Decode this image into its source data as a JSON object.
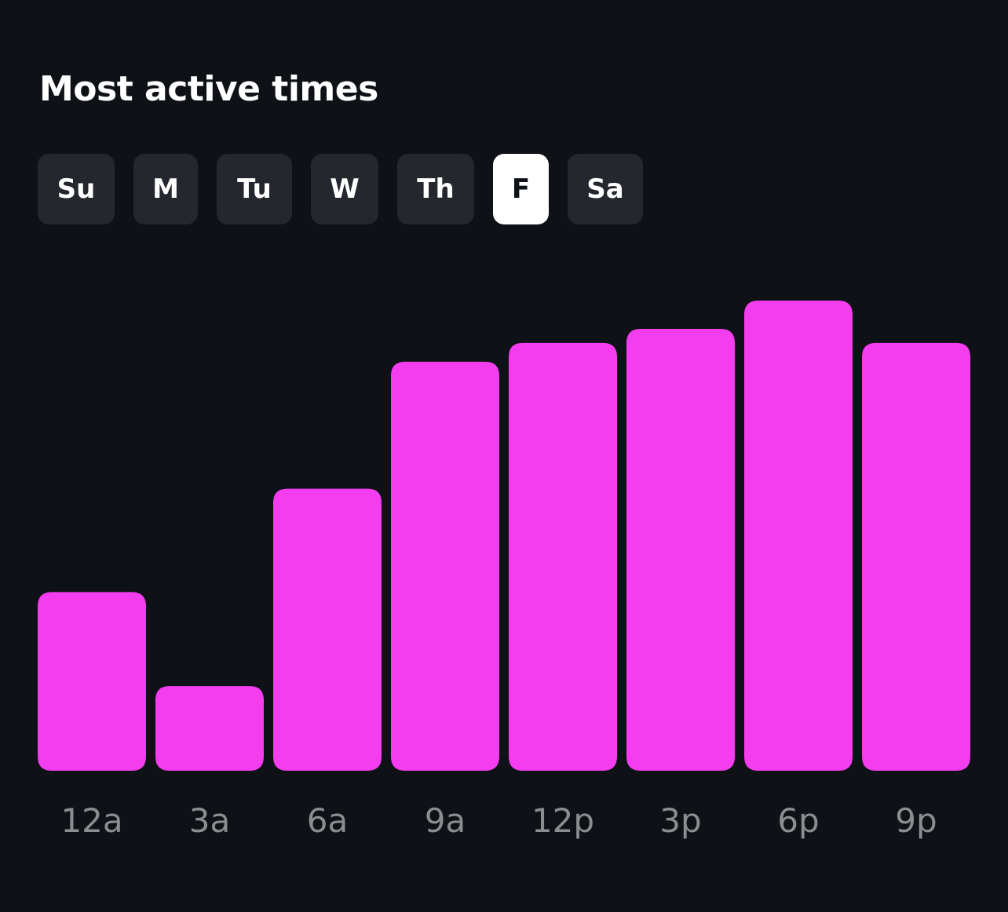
{
  "header": {
    "title": "Most active times"
  },
  "days": [
    {
      "label": "Su",
      "selected": false
    },
    {
      "label": "M",
      "selected": false
    },
    {
      "label": "Tu",
      "selected": false
    },
    {
      "label": "W",
      "selected": false
    },
    {
      "label": "Th",
      "selected": false
    },
    {
      "label": "F",
      "selected": true
    },
    {
      "label": "Sa",
      "selected": false
    }
  ],
  "colors": {
    "background": "#0e1116",
    "bar": "#f53df0",
    "tab": "#24272d",
    "tab_active": "#ffffff",
    "tick_label": "#8b8d91"
  },
  "chart_data": {
    "type": "bar",
    "title": "Most active times",
    "xlabel": "",
    "ylabel": "",
    "categories": [
      "12a",
      "3a",
      "6a",
      "9a",
      "12p",
      "3p",
      "6p",
      "9p"
    ],
    "values": [
      38,
      18,
      60,
      87,
      91,
      94,
      100,
      91
    ],
    "ylim": [
      0,
      100
    ],
    "grid": false
  }
}
